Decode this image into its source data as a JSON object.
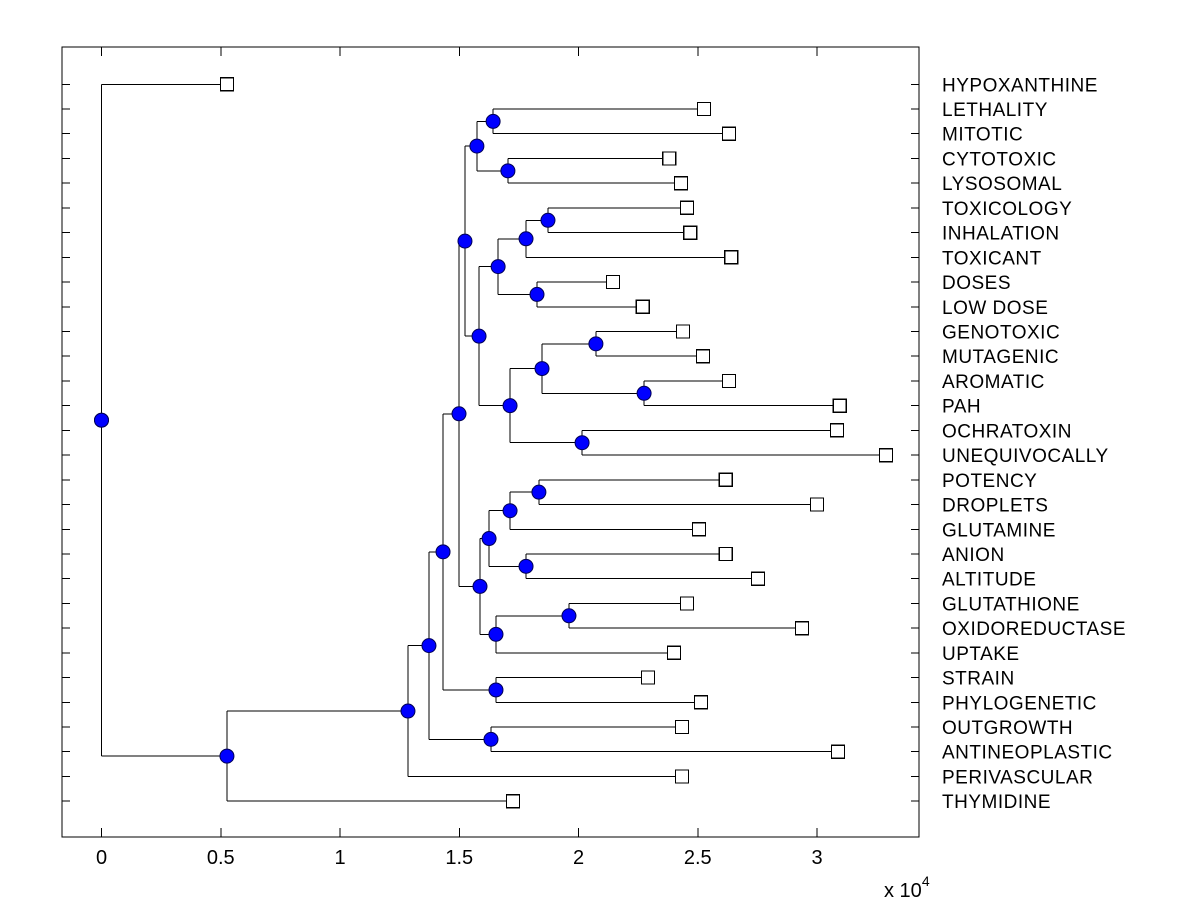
{
  "figure": {
    "background": "#ffffff"
  },
  "chart_data": {
    "type": "dendrogram",
    "orientation": "horizontal; root at left at distance 0, leaves toward the right",
    "title": "",
    "xlabel": "",
    "ylabel": "",
    "grid": false,
    "x_axis": {
      "tick_values": [
        0,
        5000,
        10000,
        15000,
        20000,
        25000,
        30000
      ],
      "tick_labels": [
        "0",
        "0.5",
        "1",
        "1.5",
        "2",
        "2.5",
        "3"
      ],
      "multiplier_label": "x 10",
      "multiplier_exponent": "4",
      "xlim": [
        -1650,
        34300
      ]
    },
    "style": {
      "line_color": "#000000",
      "internal_marker_fill": "#0000ff",
      "internal_marker_edge": "#000055",
      "leaf_marker_fill": "#ffffff",
      "leaf_marker_edge": "#000000"
    },
    "leaves": [
      {
        "label": "HYPOXANTHINE",
        "x": 5260
      },
      {
        "label": "LETHALITY",
        "x": 25260
      },
      {
        "label": "MITOTIC",
        "x": 26310
      },
      {
        "label": "CYTOTOXIC",
        "x": 23800
      },
      {
        "label": "LYSOSOMAL",
        "x": 24300
      },
      {
        "label": "TOXICOLOGY",
        "x": 24550
      },
      {
        "label": "INHALATION",
        "x": 24680
      },
      {
        "label": "TOXICANT",
        "x": 26400
      },
      {
        "label": "DOSES",
        "x": 21450
      },
      {
        "label": "LOW DOSE",
        "x": 22700
      },
      {
        "label": "GENOTOXIC",
        "x": 24380
      },
      {
        "label": "MUTAGENIC",
        "x": 25220
      },
      {
        "label": "AROMATIC",
        "x": 26310
      },
      {
        "label": "PAH",
        "x": 30960
      },
      {
        "label": "OCHRATOXIN",
        "x": 30840
      },
      {
        "label": "UNEQUIVOCALLY",
        "x": 32890
      },
      {
        "label": "POTENCY",
        "x": 26180
      },
      {
        "label": "DROPLETS",
        "x": 30000
      },
      {
        "label": "GLUTAMINE",
        "x": 25050
      },
      {
        "label": "ANION",
        "x": 26180
      },
      {
        "label": "ALTITUDE",
        "x": 27530
      },
      {
        "label": "GLUTATHIONE",
        "x": 24550
      },
      {
        "label": "OXIDOREDUCTASE",
        "x": 29370
      },
      {
        "label": "UPTAKE",
        "x": 24000
      },
      {
        "label": "STRAIN",
        "x": 22910
      },
      {
        "label": "PHYLOGENETIC",
        "x": 25140
      },
      {
        "label": "OUTGROWTH",
        "x": 24340
      },
      {
        "label": "ANTINEOPLASTIC",
        "x": 30880
      },
      {
        "label": "PERIVASCULAR",
        "x": 24340
      },
      {
        "label": "THYMIDINE",
        "x": 17250
      }
    ],
    "tree": {
      "x": 0,
      "children": [
        0,
        {
          "x": 5260,
          "children": [
            {
              "x": 12850,
              "children": [
                {
                  "x": 13730,
                  "children": [
                    {
                      "x": 14320,
                      "children": [
                        {
                          "x": 14990,
                          "children": [
                            {
                              "x": 15240,
                              "children": [
                                {
                                  "x": 15740,
                                  "children": [
                                    {
                                      "x": 16420,
                                      "children": [
                                        1,
                                        2
                                      ]
                                    },
                                    {
                                      "x": 17040,
                                      "children": [
                                        3,
                                        4
                                      ]
                                    }
                                  ]
                                },
                                {
                                  "x": 15830,
                                  "children": [
                                    {
                                      "x": 16630,
                                      "children": [
                                        {
                                          "x": 17800,
                                          "children": [
                                            {
                                              "x": 18720,
                                              "children": [
                                                5,
                                                6
                                              ]
                                            },
                                            7
                                          ]
                                        },
                                        {
                                          "x": 18260,
                                          "children": [
                                            8,
                                            9
                                          ]
                                        }
                                      ]
                                    },
                                    {
                                      "x": 17130,
                                      "children": [
                                        {
                                          "x": 18470,
                                          "children": [
                                            {
                                              "x": 20730,
                                              "children": [
                                                10,
                                                11
                                              ]
                                            },
                                            {
                                              "x": 22750,
                                              "children": [
                                                12,
                                                13
                                              ]
                                            }
                                          ]
                                        },
                                        {
                                          "x": 20150,
                                          "children": [
                                            14,
                                            15
                                          ]
                                        }
                                      ]
                                    }
                                  ]
                                }
                              ]
                            },
                            {
                              "x": 15870,
                              "children": [
                                {
                                  "x": 16250,
                                  "children": [
                                    {
                                      "x": 17130,
                                      "children": [
                                        {
                                          "x": 18340,
                                          "children": [
                                            16,
                                            17
                                          ]
                                        },
                                        18
                                      ]
                                    },
                                    {
                                      "x": 17800,
                                      "children": [
                                        19,
                                        20
                                      ]
                                    }
                                  ]
                                },
                                {
                                  "x": 16540,
                                  "children": [
                                    {
                                      "x": 19600,
                                      "children": [
                                        21,
                                        22
                                      ]
                                    },
                                    23
                                  ]
                                }
                              ]
                            }
                          ]
                        },
                        {
                          "x": 16540,
                          "children": [
                            24,
                            25
                          ]
                        }
                      ]
                    },
                    {
                      "x": 16330,
                      "children": [
                        26,
                        27
                      ]
                    }
                  ]
                },
                28
              ]
            },
            29
          ]
        }
      ]
    }
  }
}
